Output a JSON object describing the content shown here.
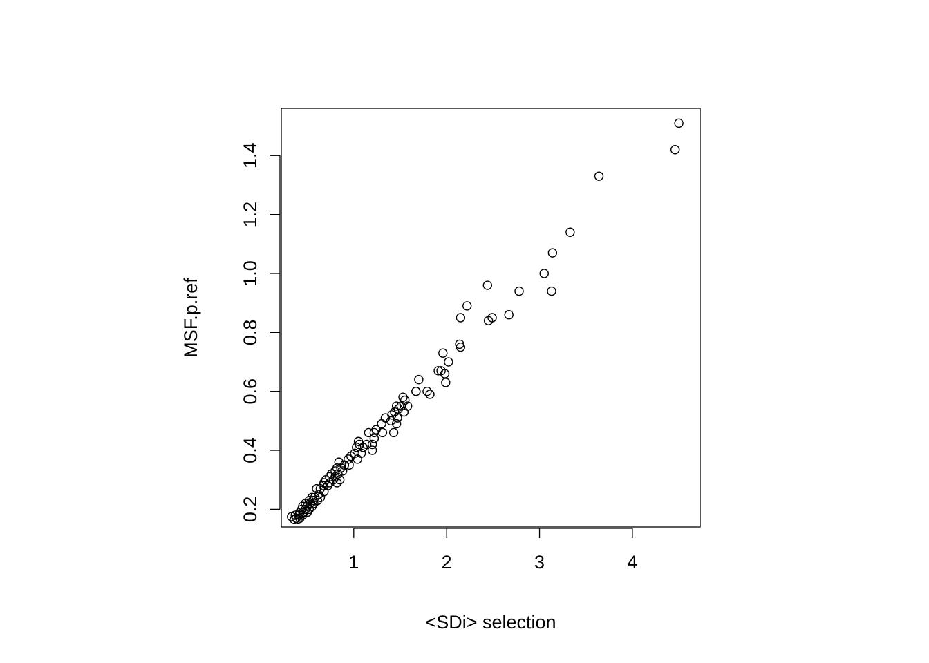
{
  "chart_data": {
    "type": "scatter",
    "title": "",
    "xlabel": "<SDi> selection",
    "ylabel": "MSF.p.ref",
    "xlim": [
      0.22,
      4.73
    ],
    "ylim": [
      0.14,
      1.56
    ],
    "xticks": [
      1,
      2,
      3,
      4
    ],
    "yticks": [
      0.2,
      0.4,
      0.6,
      0.8,
      1.0,
      1.2,
      1.4
    ],
    "ytick_labels": [
      "0.2",
      "0.4",
      "0.6",
      "0.8",
      "1.0",
      "1.2",
      "1.4"
    ],
    "grid": false,
    "legend": "none",
    "marker": "open-circle",
    "color": "#000000",
    "points": [
      [
        4.5,
        1.51
      ],
      [
        4.46,
        1.42
      ],
      [
        3.64,
        1.33
      ],
      [
        3.33,
        1.14
      ],
      [
        3.14,
        1.07
      ],
      [
        3.05,
        1.0
      ],
      [
        3.13,
        0.94
      ],
      [
        2.78,
        0.94
      ],
      [
        2.44,
        0.96
      ],
      [
        2.22,
        0.89
      ],
      [
        2.15,
        0.85
      ],
      [
        2.45,
        0.84
      ],
      [
        2.49,
        0.85
      ],
      [
        2.67,
        0.86
      ],
      [
        2.14,
        0.76
      ],
      [
        2.15,
        0.75
      ],
      [
        1.96,
        0.73
      ],
      [
        2.02,
        0.7
      ],
      [
        1.91,
        0.67
      ],
      [
        1.94,
        0.67
      ],
      [
        1.98,
        0.66
      ],
      [
        1.99,
        0.63
      ],
      [
        1.7,
        0.64
      ],
      [
        1.67,
        0.6
      ],
      [
        1.67,
        0.6
      ],
      [
        1.79,
        0.6
      ],
      [
        1.82,
        0.59
      ],
      [
        1.53,
        0.58
      ],
      [
        1.55,
        0.57
      ],
      [
        1.58,
        0.55
      ],
      [
        1.51,
        0.55
      ],
      [
        1.46,
        0.55
      ],
      [
        1.44,
        0.53
      ],
      [
        1.48,
        0.54
      ],
      [
        1.54,
        0.53
      ],
      [
        1.41,
        0.52
      ],
      [
        1.47,
        0.51
      ],
      [
        1.34,
        0.51
      ],
      [
        1.4,
        0.5
      ],
      [
        1.46,
        0.49
      ],
      [
        1.3,
        0.49
      ],
      [
        1.43,
        0.46
      ],
      [
        1.31,
        0.46
      ],
      [
        1.24,
        0.47
      ],
      [
        1.22,
        0.46
      ],
      [
        1.16,
        0.46
      ],
      [
        1.22,
        0.44
      ],
      [
        1.2,
        0.42
      ],
      [
        1.14,
        0.42
      ],
      [
        1.2,
        0.4
      ],
      [
        1.05,
        0.43
      ],
      [
        1.06,
        0.42
      ],
      [
        1.1,
        0.41
      ],
      [
        1.03,
        0.41
      ],
      [
        1.08,
        0.39
      ],
      [
        1.01,
        0.39
      ],
      [
        0.97,
        0.38
      ],
      [
        1.04,
        0.37
      ],
      [
        0.94,
        0.37
      ],
      [
        0.9,
        0.35
      ],
      [
        0.95,
        0.35
      ],
      [
        0.84,
        0.36
      ],
      [
        0.86,
        0.34
      ],
      [
        0.82,
        0.34
      ],
      [
        0.88,
        0.33
      ],
      [
        0.8,
        0.33
      ],
      [
        0.76,
        0.32
      ],
      [
        0.83,
        0.32
      ],
      [
        0.74,
        0.31
      ],
      [
        0.8,
        0.31
      ],
      [
        0.7,
        0.3
      ],
      [
        0.78,
        0.3
      ],
      [
        0.85,
        0.3
      ],
      [
        0.68,
        0.29
      ],
      [
        0.74,
        0.29
      ],
      [
        0.82,
        0.29
      ],
      [
        0.67,
        0.28
      ],
      [
        0.72,
        0.28
      ],
      [
        0.6,
        0.27
      ],
      [
        0.64,
        0.27
      ],
      [
        0.68,
        0.26
      ],
      [
        0.62,
        0.25
      ],
      [
        0.55,
        0.24
      ],
      [
        0.58,
        0.24
      ],
      [
        0.64,
        0.24
      ],
      [
        0.52,
        0.23
      ],
      [
        0.56,
        0.23
      ],
      [
        0.61,
        0.23
      ],
      [
        0.48,
        0.22
      ],
      [
        0.53,
        0.22
      ],
      [
        0.57,
        0.22
      ],
      [
        0.45,
        0.21
      ],
      [
        0.5,
        0.21
      ],
      [
        0.55,
        0.21
      ],
      [
        0.44,
        0.2
      ],
      [
        0.48,
        0.2
      ],
      [
        0.52,
        0.2
      ],
      [
        0.42,
        0.19
      ],
      [
        0.46,
        0.19
      ],
      [
        0.5,
        0.19
      ],
      [
        0.37,
        0.18
      ],
      [
        0.41,
        0.18
      ],
      [
        0.45,
        0.18
      ],
      [
        0.33,
        0.175
      ],
      [
        0.38,
        0.17
      ],
      [
        0.42,
        0.17
      ],
      [
        0.36,
        0.165
      ],
      [
        0.4,
        0.165
      ]
    ]
  }
}
